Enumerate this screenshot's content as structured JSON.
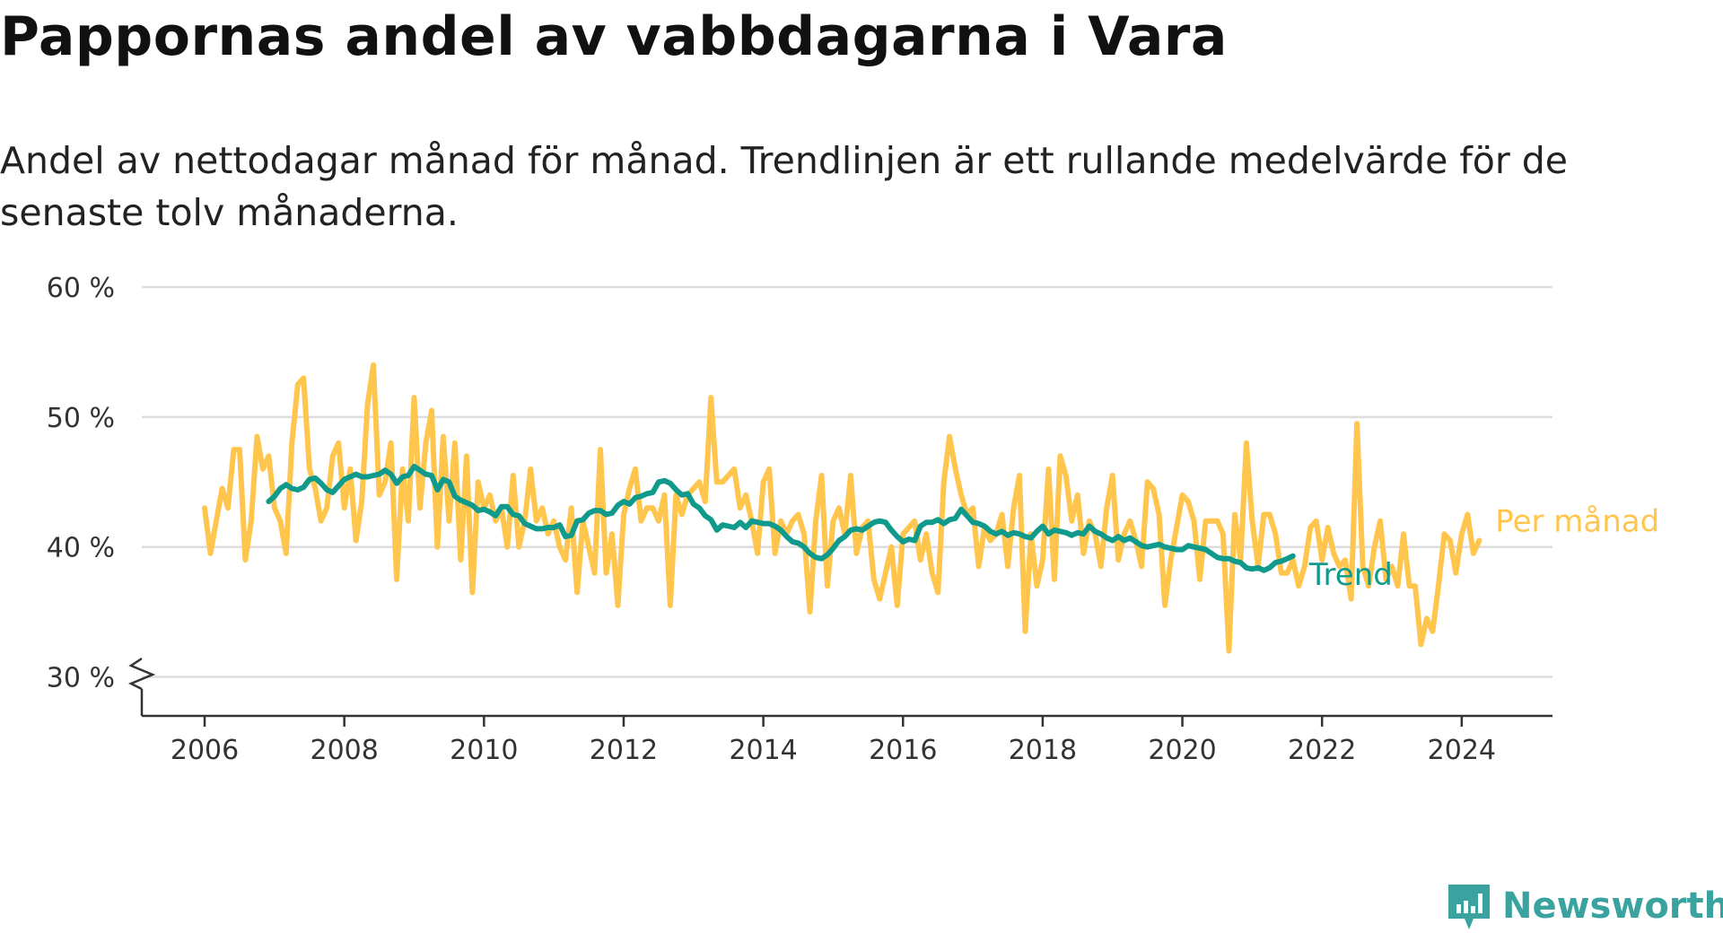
{
  "title": "Pappornas andel av vabbdagarna i Vara",
  "subtitle": "Andel av nettodagar månad för månad. Trendlinjen är ett rullande medelvärde för de senaste tolv månaderna.",
  "brand": "Newsworthy",
  "colors": {
    "monthly": "#ffc54d",
    "trend": "#0f9a8c",
    "grid": "#dddddd",
    "axis": "#333333",
    "brand": "#3aa3a0"
  },
  "chart_data": {
    "type": "line",
    "title": "Pappornas andel av vabbdagarna i Vara",
    "subtitle": "Andel av nettodagar månad för månad. Trendlinjen är ett rullande medelvärde för de senaste tolv månaderna.",
    "xlabel": "",
    "ylabel": "",
    "x_ticks": [
      "2006",
      "2008",
      "2010",
      "2012",
      "2014",
      "2016",
      "2018",
      "2020",
      "2022",
      "2024"
    ],
    "y_ticks": [
      "30 %",
      "40 %",
      "50 %",
      "60 %"
    ],
    "y_tick_values": [
      30,
      40,
      50,
      60
    ],
    "ylim": [
      27,
      60
    ],
    "xlim": [
      2005.1,
      2025.3
    ],
    "axis_break": true,
    "grid": "horizontal",
    "legend": "end-of-line labels",
    "x_start": 2006.0,
    "x_step_months": 1,
    "series": [
      {
        "name": "Per månad",
        "values": [
          43,
          39.5,
          42,
          44.5,
          43,
          47.5,
          47.5,
          39,
          42,
          48.5,
          46,
          47,
          43,
          42,
          39.5,
          48,
          52.5,
          53,
          46,
          44.5,
          42,
          43,
          47,
          48,
          43,
          46,
          40.5,
          43.5,
          51,
          54,
          44,
          45,
          48,
          37.5,
          46,
          42,
          51.5,
          43,
          48,
          50.5,
          40,
          48.5,
          42,
          48,
          39,
          47,
          36.5,
          45,
          43,
          44,
          42,
          43,
          40,
          45.5,
          40,
          42,
          46,
          42,
          43,
          41,
          42,
          40,
          39,
          43,
          36.5,
          42,
          40,
          38,
          47.5,
          38,
          41,
          35.5,
          42.5,
          44.5,
          46,
          42,
          43,
          43,
          42,
          44,
          35.5,
          44,
          42.5,
          44,
          44.5,
          45,
          43.5,
          51.5,
          45,
          45,
          45.5,
          46,
          43,
          44,
          42,
          39.5,
          45,
          46,
          39.5,
          42,
          41,
          42,
          42.5,
          41,
          35,
          42,
          45.5,
          37,
          42,
          43,
          41,
          45.5,
          39.5,
          41.5,
          42,
          37.5,
          36,
          38,
          40,
          35.5,
          41,
          41.5,
          42,
          39,
          41,
          38,
          36.5,
          45,
          48.5,
          46,
          44,
          42.5,
          43,
          38.5,
          41.5,
          40.5,
          41,
          42.5,
          38.5,
          43,
          45.5,
          33.5,
          41,
          37,
          39,
          46,
          37.5,
          47,
          45.5,
          42,
          44,
          39.5,
          42,
          41,
          38.5,
          43,
          45.5,
          39,
          41,
          42,
          40.5,
          38.5,
          45,
          44.5,
          42.5,
          35.5,
          39,
          41.5,
          44,
          43.5,
          42,
          37.5,
          42,
          42,
          42,
          41,
          32,
          42.5,
          39,
          48,
          42,
          38.5,
          42.5,
          42.5,
          41,
          38,
          38,
          39,
          37,
          38.5,
          41.5,
          42,
          39,
          41.5,
          39.5,
          38.5,
          39,
          36,
          49.5,
          38.5,
          37,
          40,
          42,
          37.5,
          38.5,
          37,
          41,
          37,
          37,
          32.5,
          34.5,
          33.5,
          37,
          41,
          40.5,
          38,
          41,
          42.5,
          39.5,
          40.5
        ]
      },
      {
        "name": "Trend",
        "x_start": 2006.917,
        "values": [
          43.5,
          43.9,
          44.5,
          44.8,
          44.5,
          44.4,
          44.6,
          45.2,
          45.3,
          44.9,
          44.4,
          44.2,
          44.7,
          45.2,
          45.4,
          45.6,
          45.4,
          45.4,
          45.5,
          45.6,
          45.9,
          45.6,
          44.9,
          45.4,
          45.5,
          46.2,
          45.9,
          45.6,
          45.5,
          44.4,
          45.2,
          45.0,
          43.9,
          43.6,
          43.4,
          43.2,
          42.8,
          42.9,
          42.7,
          42.4,
          43.1,
          43.1,
          42.5,
          42.4,
          41.8,
          41.6,
          41.4,
          41.4,
          41.5,
          41.5,
          41.7,
          40.8,
          40.9,
          42.0,
          42.1,
          42.6,
          42.8,
          42.8,
          42.5,
          42.6,
          43.2,
          43.5,
          43.3,
          43.8,
          43.9,
          44.1,
          44.2,
          45.0,
          45.1,
          44.9,
          44.4,
          44.0,
          44.1,
          43.3,
          43.0,
          42.4,
          42.1,
          41.3,
          41.7,
          41.6,
          41.5,
          41.9,
          41.5,
          42.0,
          41.9,
          41.8,
          41.8,
          41.6,
          41.3,
          40.8,
          40.4,
          40.3,
          40.0,
          39.5,
          39.2,
          39.1,
          39.4,
          39.9,
          40.5,
          40.8,
          41.3,
          41.4,
          41.3,
          41.6,
          41.9,
          42.0,
          41.9,
          41.3,
          40.8,
          40.4,
          40.6,
          40.5,
          41.6,
          41.9,
          41.9,
          42.1,
          41.8,
          42.1,
          42.2,
          42.9,
          42.4,
          41.9,
          41.8,
          41.6,
          41.2,
          41.0,
          41.2,
          40.9,
          41.1,
          41.0,
          40.8,
          40.7,
          41.2,
          41.6,
          41.0,
          41.3,
          41.2,
          41.1,
          40.9,
          41.1,
          41.0,
          41.6,
          41.2,
          41.0,
          40.7,
          40.5,
          40.8,
          40.5,
          40.7,
          40.4,
          40.1,
          40.0,
          40.1,
          40.2,
          40.0,
          39.9,
          39.8,
          39.8,
          40.1,
          40.0,
          39.9,
          39.8,
          39.5,
          39.2,
          39.1,
          39.1,
          38.9,
          38.8,
          38.4,
          38.3,
          38.4,
          38.2,
          38.4,
          38.8,
          38.9,
          39.1,
          39.3
        ]
      }
    ]
  }
}
